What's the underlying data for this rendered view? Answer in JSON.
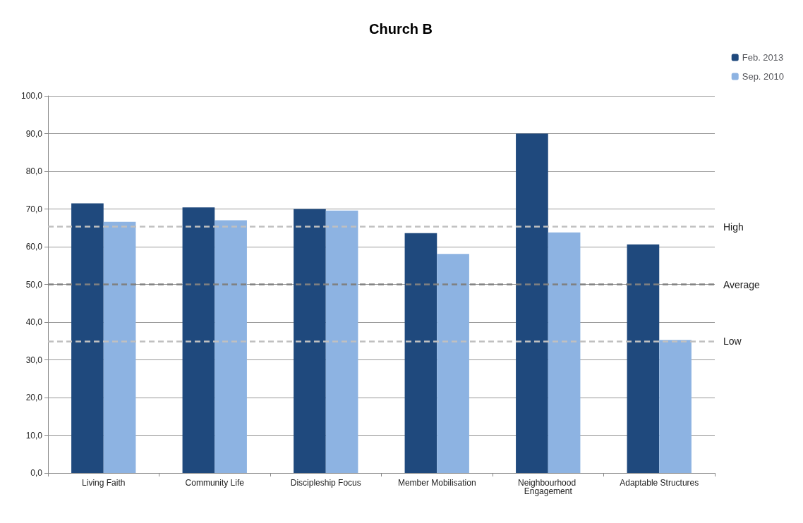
{
  "chart_data": {
    "type": "bar",
    "title": "Church B",
    "categories": [
      "Living Faith",
      "Community Life",
      "Discipleship Focus",
      "Member Mobilisation",
      "Neighbourhood Engagement",
      "Adaptable Structures"
    ],
    "series": [
      {
        "name": "Feb. 2013",
        "color": "#1f497d",
        "values": [
          71.5,
          70.4,
          70.0,
          63.6,
          90.0,
          60.6
        ]
      },
      {
        "name": "Sep. 2010",
        "color": "#8db3e2",
        "values": [
          66.6,
          67.0,
          69.6,
          58.1,
          63.8,
          35.3
        ]
      }
    ],
    "ylim": [
      0,
      100
    ],
    "yticks": [
      {
        "value": 0,
        "label": "0,0"
      },
      {
        "value": 10,
        "label": "10,0"
      },
      {
        "value": 20,
        "label": "20,0"
      },
      {
        "value": 30,
        "label": "30,0"
      },
      {
        "value": 40,
        "label": "40,0"
      },
      {
        "value": 50,
        "label": "50,0"
      },
      {
        "value": 60,
        "label": "60,0"
      },
      {
        "value": 70,
        "label": "70,0"
      },
      {
        "value": 80,
        "label": "80,0"
      },
      {
        "value": 90,
        "label": "90,0"
      },
      {
        "value": 100,
        "label": "100,0"
      }
    ],
    "ref_lines": [
      {
        "axis": "y",
        "value": 65.3,
        "label": "High",
        "color": "#c0c0c0",
        "line_style": "dashed"
      },
      {
        "axis": "y",
        "value": 50,
        "label": "Average",
        "color": "#808080",
        "line_style": "dashed"
      },
      {
        "axis": "y",
        "value": 35,
        "label": "Low",
        "color": "#c0c0c0",
        "line_style": "dashed"
      }
    ],
    "grid": "y",
    "legend": "top right"
  }
}
